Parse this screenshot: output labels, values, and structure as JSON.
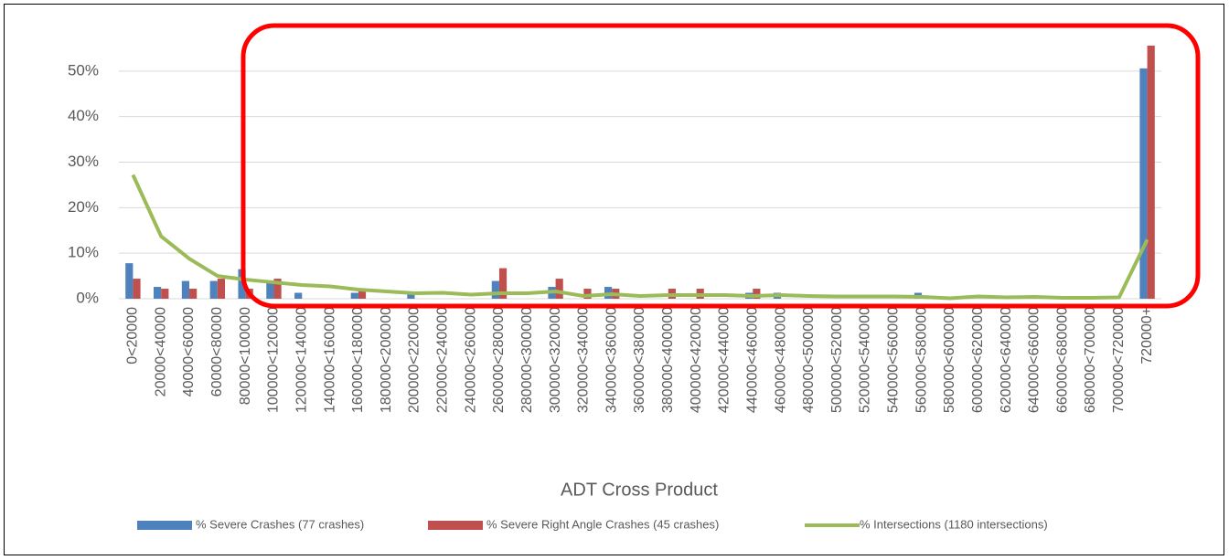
{
  "chart_data": {
    "type": "bar",
    "x_label": "ADT Cross Product",
    "categories": [
      "0<20000",
      "20000<40000",
      "40000<60000",
      "60000<80000",
      "80000<100000",
      "100000<120000",
      "120000<140000",
      "140000<160000",
      "160000<180000",
      "180000<200000",
      "200000<220000",
      "220000<240000",
      "240000<260000",
      "260000<280000",
      "280000<300000",
      "300000<320000",
      "320000<340000",
      "340000<360000",
      "360000<380000",
      "380000<400000",
      "400000<420000",
      "420000<440000",
      "440000<460000",
      "460000<480000",
      "480000<500000",
      "500000<520000",
      "520000<540000",
      "540000<560000",
      "560000<580000",
      "580000<600000",
      "600000<620000",
      "620000<640000",
      "640000<660000",
      "660000<680000",
      "680000<700000",
      "700000<720000",
      "720000+"
    ],
    "series": [
      {
        "name": "% Severe Crashes (77 crashes)",
        "type": "bar",
        "color": "#4f81bd",
        "values": [
          7.8,
          2.6,
          3.9,
          3.9,
          6.5,
          3.9,
          1.3,
          0,
          1.3,
          0,
          1.3,
          0,
          0,
          3.9,
          0,
          2.6,
          0,
          2.6,
          0,
          0,
          0,
          0,
          1.3,
          1.3,
          0,
          0,
          0,
          0,
          1.3,
          0,
          0,
          0,
          0,
          0,
          0,
          0,
          50.6
        ]
      },
      {
        "name": "% Severe Right Angle Crashes (45 crashes)",
        "type": "bar",
        "color": "#c0504d",
        "values": [
          4.4,
          2.2,
          2.2,
          4.4,
          2.2,
          4.4,
          0,
          0,
          2.2,
          0,
          0,
          0,
          0,
          6.7,
          0,
          4.4,
          2.2,
          2.2,
          0,
          2.2,
          2.2,
          0,
          2.2,
          0,
          0,
          0,
          0,
          0,
          0,
          0,
          0,
          0,
          0,
          0,
          0,
          0,
          55.6
        ]
      },
      {
        "name": "% Intersections (1180 intersections)",
        "type": "line",
        "color": "#9bbb59",
        "values": [
          27.2,
          13.7,
          8.8,
          5.0,
          4.2,
          3.6,
          3.0,
          2.7,
          2.0,
          1.6,
          1.2,
          1.3,
          0.9,
          1.2,
          1.2,
          1.6,
          0.6,
          1.0,
          0.6,
          0.8,
          0.8,
          0.8,
          0.6,
          0.8,
          0.6,
          0.5,
          0.5,
          0.5,
          0.4,
          0.1,
          0.5,
          0.3,
          0.4,
          0.2,
          0.2,
          0.3,
          13.0
        ]
      }
    ],
    "ylim": [
      0,
      60
    ],
    "yticks": [
      {
        "value": 0,
        "label": "0%"
      },
      {
        "value": 10,
        "label": "10%"
      },
      {
        "value": 20,
        "label": "20%"
      },
      {
        "value": 30,
        "label": "30%"
      },
      {
        "value": 40,
        "label": "40%"
      },
      {
        "value": 50,
        "label": "50%"
      }
    ],
    "grid": true
  }
}
